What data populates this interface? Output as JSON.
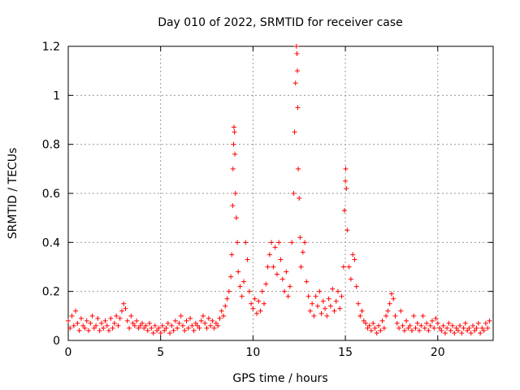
{
  "chart_data": {
    "type": "scatter",
    "title": "Day 010 of 2022, SRMTID for receiver case",
    "xlabel": "GPS time / hours",
    "ylabel": "SRMTID / TECUs",
    "xlim": [
      0,
      23
    ],
    "ylim": [
      0,
      1.2
    ],
    "xticks": [
      0,
      5,
      10,
      15,
      20
    ],
    "yticks": [
      0,
      0.2,
      0.4,
      0.6,
      0.8,
      1,
      1.2
    ],
    "xtick_labels": [
      "0",
      "5",
      "10",
      "15",
      "20"
    ],
    "ytick_labels": [
      "0",
      "0.2",
      "0.4",
      "0.6",
      "0.8",
      "1",
      "1.2"
    ],
    "grid": true,
    "marker": "+",
    "series": [
      {
        "name": "SRMTID",
        "color": "#ff0000",
        "points": [
          [
            0.0,
            0.08
          ],
          [
            0.1,
            0.05
          ],
          [
            0.2,
            0.1
          ],
          [
            0.3,
            0.06
          ],
          [
            0.4,
            0.12
          ],
          [
            0.5,
            0.07
          ],
          [
            0.6,
            0.04
          ],
          [
            0.7,
            0.09
          ],
          [
            0.8,
            0.06
          ],
          [
            0.9,
            0.05
          ],
          [
            1.0,
            0.08
          ],
          [
            1.1,
            0.04
          ],
          [
            1.2,
            0.07
          ],
          [
            1.3,
            0.1
          ],
          [
            1.4,
            0.05
          ],
          [
            1.5,
            0.06
          ],
          [
            1.6,
            0.09
          ],
          [
            1.7,
            0.04
          ],
          [
            1.8,
            0.07
          ],
          [
            1.9,
            0.05
          ],
          [
            2.0,
            0.08
          ],
          [
            2.1,
            0.06
          ],
          [
            2.2,
            0.04
          ],
          [
            2.3,
            0.09
          ],
          [
            2.4,
            0.05
          ],
          [
            2.5,
            0.07
          ],
          [
            2.6,
            0.1
          ],
          [
            2.7,
            0.06
          ],
          [
            2.8,
            0.09
          ],
          [
            2.9,
            0.12
          ],
          [
            3.0,
            0.15
          ],
          [
            3.1,
            0.13
          ],
          [
            3.2,
            0.08
          ],
          [
            3.3,
            0.05
          ],
          [
            3.4,
            0.1
          ],
          [
            3.5,
            0.07
          ],
          [
            3.6,
            0.06
          ],
          [
            3.7,
            0.08
          ],
          [
            3.8,
            0.05
          ],
          [
            3.9,
            0.06
          ],
          [
            4.0,
            0.07
          ],
          [
            4.1,
            0.05
          ],
          [
            4.2,
            0.06
          ],
          [
            4.3,
            0.04
          ],
          [
            4.4,
            0.07
          ],
          [
            4.5,
            0.05
          ],
          [
            4.6,
            0.03
          ],
          [
            4.7,
            0.06
          ],
          [
            4.8,
            0.04
          ],
          [
            4.9,
            0.05
          ],
          [
            5.0,
            0.03
          ],
          [
            5.1,
            0.06
          ],
          [
            5.2,
            0.04
          ],
          [
            5.3,
            0.05
          ],
          [
            5.4,
            0.07
          ],
          [
            5.5,
            0.03
          ],
          [
            5.6,
            0.06
          ],
          [
            5.7,
            0.04
          ],
          [
            5.8,
            0.08
          ],
          [
            5.9,
            0.05
          ],
          [
            6.0,
            0.07
          ],
          [
            6.1,
            0.1
          ],
          [
            6.2,
            0.06
          ],
          [
            6.3,
            0.04
          ],
          [
            6.4,
            0.08
          ],
          [
            6.5,
            0.05
          ],
          [
            6.6,
            0.09
          ],
          [
            6.7,
            0.06
          ],
          [
            6.8,
            0.04
          ],
          [
            6.9,
            0.07
          ],
          [
            7.0,
            0.06
          ],
          [
            7.1,
            0.05
          ],
          [
            7.2,
            0.08
          ],
          [
            7.3,
            0.1
          ],
          [
            7.4,
            0.07
          ],
          [
            7.5,
            0.05
          ],
          [
            7.6,
            0.09
          ],
          [
            7.7,
            0.06
          ],
          [
            7.8,
            0.08
          ],
          [
            7.9,
            0.05
          ],
          [
            8.0,
            0.07
          ],
          [
            8.1,
            0.06
          ],
          [
            8.2,
            0.09
          ],
          [
            8.3,
            0.12
          ],
          [
            8.4,
            0.1
          ],
          [
            8.5,
            0.14
          ],
          [
            8.6,
            0.17
          ],
          [
            8.7,
            0.2
          ],
          [
            8.8,
            0.26
          ],
          [
            8.85,
            0.35
          ],
          [
            8.9,
            0.55
          ],
          [
            8.92,
            0.7
          ],
          [
            8.95,
            0.8
          ],
          [
            8.97,
            0.87
          ],
          [
            9.0,
            0.85
          ],
          [
            9.02,
            0.76
          ],
          [
            9.05,
            0.6
          ],
          [
            9.1,
            0.5
          ],
          [
            9.15,
            0.4
          ],
          [
            9.2,
            0.28
          ],
          [
            9.3,
            0.22
          ],
          [
            9.4,
            0.18
          ],
          [
            9.5,
            0.24
          ],
          [
            9.6,
            0.4
          ],
          [
            9.7,
            0.33
          ],
          [
            9.8,
            0.2
          ],
          [
            9.9,
            0.15
          ],
          [
            10.0,
            0.13
          ],
          [
            10.1,
            0.17
          ],
          [
            10.2,
            0.11
          ],
          [
            10.3,
            0.16
          ],
          [
            10.4,
            0.12
          ],
          [
            10.5,
            0.2
          ],
          [
            10.6,
            0.15
          ],
          [
            10.7,
            0.23
          ],
          [
            10.8,
            0.3
          ],
          [
            10.9,
            0.35
          ],
          [
            11.0,
            0.4
          ],
          [
            11.1,
            0.3
          ],
          [
            11.2,
            0.38
          ],
          [
            11.3,
            0.27
          ],
          [
            11.4,
            0.4
          ],
          [
            11.5,
            0.33
          ],
          [
            11.6,
            0.25
          ],
          [
            11.7,
            0.2
          ],
          [
            11.8,
            0.28
          ],
          [
            11.9,
            0.18
          ],
          [
            12.0,
            0.22
          ],
          [
            12.1,
            0.4
          ],
          [
            12.2,
            0.6
          ],
          [
            12.25,
            0.85
          ],
          [
            12.3,
            1.05
          ],
          [
            12.35,
            1.2
          ],
          [
            12.38,
            1.17
          ],
          [
            12.4,
            1.1
          ],
          [
            12.42,
            0.95
          ],
          [
            12.45,
            0.7
          ],
          [
            12.5,
            0.58
          ],
          [
            12.55,
            0.42
          ],
          [
            12.6,
            0.3
          ],
          [
            12.7,
            0.36
          ],
          [
            12.8,
            0.4
          ],
          [
            12.9,
            0.24
          ],
          [
            13.0,
            0.18
          ],
          [
            13.1,
            0.12
          ],
          [
            13.2,
            0.15
          ],
          [
            13.3,
            0.1
          ],
          [
            13.4,
            0.18
          ],
          [
            13.5,
            0.14
          ],
          [
            13.6,
            0.2
          ],
          [
            13.7,
            0.11
          ],
          [
            13.8,
            0.16
          ],
          [
            13.9,
            0.13
          ],
          [
            14.0,
            0.1
          ],
          [
            14.1,
            0.17
          ],
          [
            14.2,
            0.14
          ],
          [
            14.3,
            0.21
          ],
          [
            14.4,
            0.12
          ],
          [
            14.5,
            0.16
          ],
          [
            14.6,
            0.2
          ],
          [
            14.7,
            0.13
          ],
          [
            14.8,
            0.18
          ],
          [
            14.9,
            0.3
          ],
          [
            14.95,
            0.53
          ],
          [
            15.0,
            0.65
          ],
          [
            15.02,
            0.7
          ],
          [
            15.05,
            0.62
          ],
          [
            15.1,
            0.45
          ],
          [
            15.2,
            0.3
          ],
          [
            15.3,
            0.25
          ],
          [
            15.4,
            0.35
          ],
          [
            15.5,
            0.33
          ],
          [
            15.6,
            0.22
          ],
          [
            15.7,
            0.15
          ],
          [
            15.8,
            0.1
          ],
          [
            15.9,
            0.12
          ],
          [
            16.0,
            0.08
          ],
          [
            16.1,
            0.07
          ],
          [
            16.2,
            0.05
          ],
          [
            16.3,
            0.06
          ],
          [
            16.4,
            0.04
          ],
          [
            16.5,
            0.07
          ],
          [
            16.6,
            0.05
          ],
          [
            16.7,
            0.03
          ],
          [
            16.8,
            0.06
          ],
          [
            16.9,
            0.04
          ],
          [
            17.0,
            0.08
          ],
          [
            17.1,
            0.05
          ],
          [
            17.2,
            0.1
          ],
          [
            17.3,
            0.12
          ],
          [
            17.4,
            0.15
          ],
          [
            17.5,
            0.19
          ],
          [
            17.6,
            0.17
          ],
          [
            17.7,
            0.1
          ],
          [
            17.8,
            0.07
          ],
          [
            17.9,
            0.05
          ],
          [
            18.0,
            0.12
          ],
          [
            18.1,
            0.06
          ],
          [
            18.2,
            0.04
          ],
          [
            18.3,
            0.08
          ],
          [
            18.4,
            0.05
          ],
          [
            18.5,
            0.06
          ],
          [
            18.6,
            0.04
          ],
          [
            18.7,
            0.1
          ],
          [
            18.8,
            0.05
          ],
          [
            18.9,
            0.07
          ],
          [
            19.0,
            0.04
          ],
          [
            19.1,
            0.06
          ],
          [
            19.2,
            0.1
          ],
          [
            19.3,
            0.05
          ],
          [
            19.4,
            0.07
          ],
          [
            19.5,
            0.04
          ],
          [
            19.6,
            0.06
          ],
          [
            19.7,
            0.08
          ],
          [
            19.8,
            0.05
          ],
          [
            19.9,
            0.09
          ],
          [
            20.0,
            0.07
          ],
          [
            20.1,
            0.05
          ],
          [
            20.2,
            0.04
          ],
          [
            20.3,
            0.06
          ],
          [
            20.4,
            0.03
          ],
          [
            20.5,
            0.05
          ],
          [
            20.6,
            0.07
          ],
          [
            20.7,
            0.04
          ],
          [
            20.8,
            0.06
          ],
          [
            20.9,
            0.03
          ],
          [
            21.0,
            0.05
          ],
          [
            21.1,
            0.04
          ],
          [
            21.2,
            0.06
          ],
          [
            21.3,
            0.03
          ],
          [
            21.4,
            0.05
          ],
          [
            21.5,
            0.07
          ],
          [
            21.6,
            0.04
          ],
          [
            21.7,
            0.05
          ],
          [
            21.8,
            0.03
          ],
          [
            21.9,
            0.06
          ],
          [
            22.0,
            0.04
          ],
          [
            22.1,
            0.05
          ],
          [
            22.2,
            0.07
          ],
          [
            22.3,
            0.03
          ],
          [
            22.4,
            0.05
          ],
          [
            22.5,
            0.04
          ],
          [
            22.6,
            0.07
          ],
          [
            22.7,
            0.05
          ],
          [
            22.8,
            0.08
          ]
        ]
      }
    ]
  }
}
